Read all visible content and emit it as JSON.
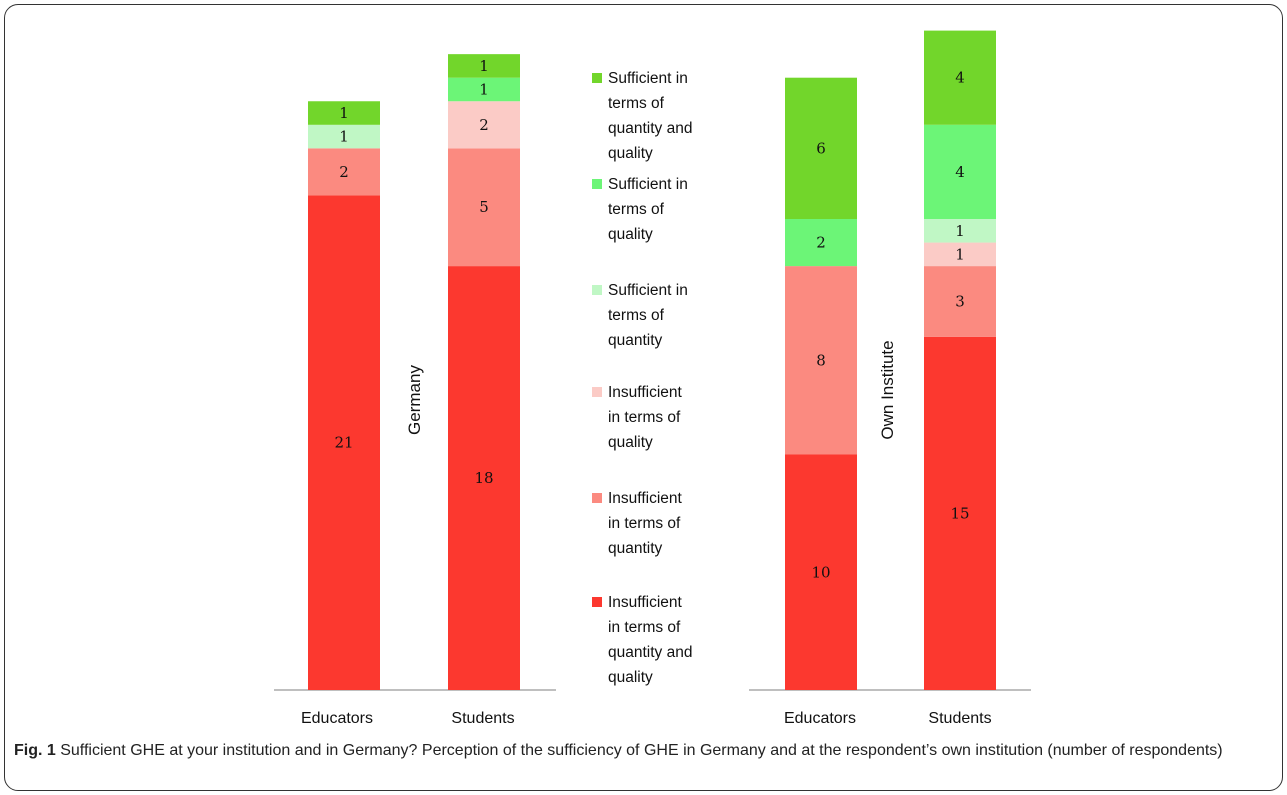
{
  "chart_data": {
    "type": "bar",
    "stacked": true,
    "categories": [
      "Educators",
      "Students"
    ],
    "legend": [
      {
        "label": "Sufficient in terms of quantity and quality",
        "color": "#72d62b",
        "lines": [
          "Sufficient in",
          "terms of",
          "quantity and",
          "quality"
        ]
      },
      {
        "label": "Sufficient in terms of quality",
        "color": "#6cf577",
        "lines": [
          "Sufficient in",
          "terms of",
          "quality"
        ]
      },
      {
        "label": "Sufficient in terms of quantity",
        "color": "#c0f7c5",
        "lines": [
          "Sufficient in",
          "terms of",
          "quantity"
        ]
      },
      {
        "label": "Insufficient in terms of quality",
        "color": "#fbcbc6",
        "lines": [
          "Insufficient",
          "in terms of",
          "quality"
        ]
      },
      {
        "label": "Insufficient in terms of quantity",
        "color": "#fb8a80",
        "lines": [
          "Insufficient",
          "in terms of",
          "quantity"
        ]
      },
      {
        "label": "Insufficient in terms of quantity and quality",
        "color": "#fc382f",
        "lines": [
          "Insufficient",
          "in terms of",
          "quantity and",
          "quality"
        ]
      }
    ],
    "panels": [
      {
        "title": "Germany",
        "series": [
          {
            "name": "Insufficient in terms of quantity and quality",
            "values": [
              21,
              18
            ]
          },
          {
            "name": "Insufficient in terms of quantity",
            "values": [
              2,
              5
            ]
          },
          {
            "name": "Insufficient in terms of quality",
            "values": [
              0,
              2
            ]
          },
          {
            "name": "Sufficient in terms of quantity",
            "values": [
              1,
              0
            ]
          },
          {
            "name": "Sufficient in terms of quality",
            "values": [
              0,
              1
            ]
          },
          {
            "name": "Sufficient in terms of quantity and quality",
            "values": [
              1,
              1
            ]
          }
        ]
      },
      {
        "title": "Own Institute",
        "series": [
          {
            "name": "Insufficient in terms of quantity and quality",
            "values": [
              10,
              15
            ]
          },
          {
            "name": "Insufficient in terms of quantity",
            "values": [
              8,
              3
            ]
          },
          {
            "name": "Insufficient in terms of quality",
            "values": [
              0,
              1
            ]
          },
          {
            "name": "Sufficient in terms of quantity",
            "values": [
              0,
              1
            ]
          },
          {
            "name": "Sufficient in terms of quality",
            "values": [
              2,
              4
            ]
          },
          {
            "name": "Sufficient in terms of quantity and quality",
            "values": [
              6,
              4
            ]
          }
        ]
      }
    ],
    "grid": false
  },
  "caption": {
    "prefix": "Fig. 1",
    "text": " Sufficient GHE at your institution and in Germany? Perception of the sufficiency of GHE in Germany and at the respondent’s own institution (number of respondents)"
  }
}
